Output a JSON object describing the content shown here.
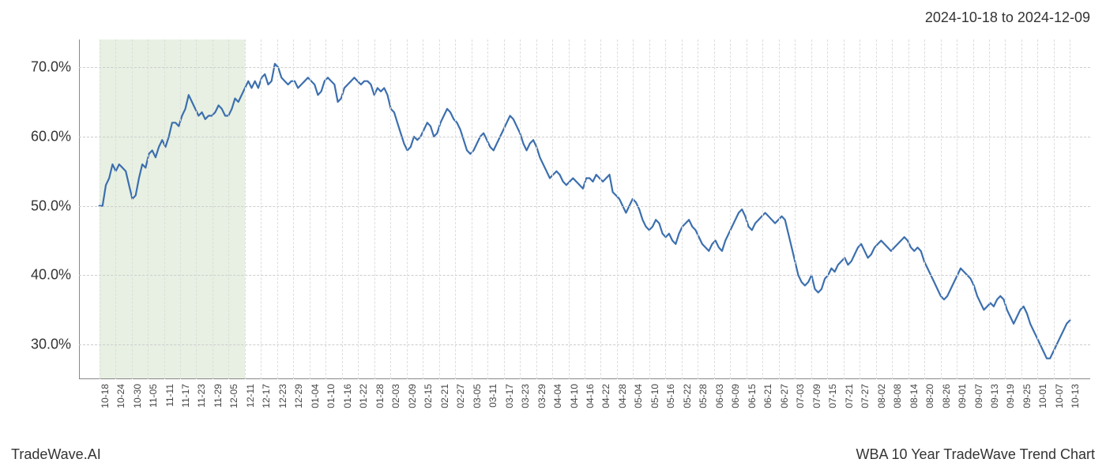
{
  "header": {
    "date_range": "2024-10-18 to 2024-12-09"
  },
  "footer": {
    "left": "TradeWave.AI",
    "right": "WBA 10 Year TradeWave Trend Chart"
  },
  "chart": {
    "type": "line",
    "background_color": "#ffffff",
    "grid_color": "#cccccc",
    "grid_dash": "3,3",
    "axis_color": "#888888",
    "line_color": "#3c6fae",
    "line_width": 2.2,
    "highlight_band": {
      "color": "#dde9d6",
      "opacity": 0.7,
      "x_start_index": 0,
      "x_end_index": 9
    },
    "y_axis": {
      "min": 25,
      "max": 74,
      "ticks": [
        30,
        40,
        50,
        60,
        70
      ],
      "tick_format_suffix": ".0%",
      "label_fontsize": 18,
      "label_color": "#333333"
    },
    "x_axis": {
      "label_fontsize": 12,
      "label_color": "#444444",
      "rotation_deg": -90,
      "labels": [
        "10-18",
        "10-24",
        "10-30",
        "11-05",
        "11-11",
        "11-17",
        "11-23",
        "11-29",
        "12-05",
        "12-11",
        "12-17",
        "12-23",
        "12-29",
        "01-04",
        "01-10",
        "01-16",
        "01-22",
        "01-28",
        "02-03",
        "02-09",
        "02-15",
        "02-21",
        "02-27",
        "03-05",
        "03-11",
        "03-17",
        "03-23",
        "03-29",
        "04-04",
        "04-10",
        "04-16",
        "04-22",
        "04-28",
        "05-04",
        "05-10",
        "05-16",
        "05-22",
        "05-28",
        "06-03",
        "06-09",
        "06-15",
        "06-21",
        "06-27",
        "07-03",
        "07-09",
        "07-15",
        "07-21",
        "07-27",
        "08-02",
        "08-08",
        "08-14",
        "08-20",
        "08-26",
        "09-01",
        "09-07",
        "09-13",
        "09-19",
        "09-25",
        "10-01",
        "10-07",
        "10-13"
      ]
    },
    "series": {
      "values": [
        50,
        50,
        53,
        54,
        56,
        55,
        56,
        55.5,
        55,
        53,
        51,
        51.5,
        54,
        56,
        55.5,
        57.5,
        58,
        57,
        58.5,
        59.5,
        58.5,
        60,
        62,
        62,
        61.5,
        63,
        64,
        66,
        65,
        64,
        63,
        63.5,
        62.5,
        63,
        63,
        63.5,
        64.5,
        64,
        63,
        63,
        64,
        65.5,
        65,
        66,
        67,
        68,
        67,
        68,
        67,
        68.5,
        69,
        67.5,
        68,
        70.5,
        70,
        68.5,
        68,
        67.5,
        68,
        68,
        67,
        67.5,
        68,
        68.5,
        68,
        67.5,
        66,
        66.5,
        68,
        68.5,
        68,
        67.5,
        65,
        65.5,
        67,
        67.5,
        68,
        68.5,
        68,
        67.5,
        68,
        68,
        67.5,
        66,
        67,
        66.5,
        67,
        66,
        64,
        63.5,
        62,
        60.5,
        59,
        58,
        58.5,
        60,
        59.5,
        60,
        61,
        62,
        61.5,
        60,
        60.5,
        62,
        63,
        64,
        63.5,
        62.5,
        62,
        61,
        59.5,
        58,
        57.5,
        58,
        59,
        60,
        60.5,
        59.5,
        58.5,
        58,
        59,
        60,
        61,
        62,
        63,
        62.5,
        61.5,
        60.5,
        59,
        58,
        59,
        59.5,
        58.5,
        57,
        56,
        55,
        54,
        54.5,
        55,
        54.5,
        53.5,
        53,
        53.5,
        54,
        53.5,
        53,
        52.5,
        54,
        54,
        53.5,
        54.5,
        54,
        53.5,
        54,
        54.5,
        52,
        51.5,
        51,
        50,
        49,
        50,
        51,
        50.5,
        49.5,
        48,
        47,
        46.5,
        47,
        48,
        47.5,
        46,
        45.5,
        46,
        45,
        44.5,
        46,
        47,
        47.5,
        48,
        47,
        46.5,
        45.5,
        44.5,
        44,
        43.5,
        44.5,
        45,
        44,
        43.5,
        45,
        46,
        47,
        48,
        49,
        49.5,
        48.5,
        47,
        46.5,
        47.5,
        48,
        48.5,
        49,
        48.5,
        48,
        47.5,
        48,
        48.5,
        48,
        46,
        44,
        42,
        40,
        39,
        38.5,
        39,
        40,
        38,
        37.5,
        38,
        39.5,
        40,
        41,
        40.5,
        41.5,
        42,
        42.5,
        41.5,
        42,
        43,
        44,
        44.5,
        43.5,
        42.5,
        43,
        44,
        44.5,
        45,
        44.5,
        44,
        43.5,
        44,
        44.5,
        45,
        45.5,
        45,
        44,
        43.5,
        44,
        43.5,
        42,
        41,
        40,
        39,
        38,
        37,
        36.5,
        37,
        38,
        39,
        40,
        41,
        40.5,
        40,
        39.5,
        38.5,
        37,
        36,
        35,
        35.5,
        36,
        35.5,
        36.5,
        37,
        36.5,
        35,
        34,
        33,
        34,
        35,
        35.5,
        34.5,
        33,
        32,
        31,
        30,
        29,
        28,
        28,
        29,
        30,
        31,
        32,
        33,
        33.5
      ]
    }
  }
}
